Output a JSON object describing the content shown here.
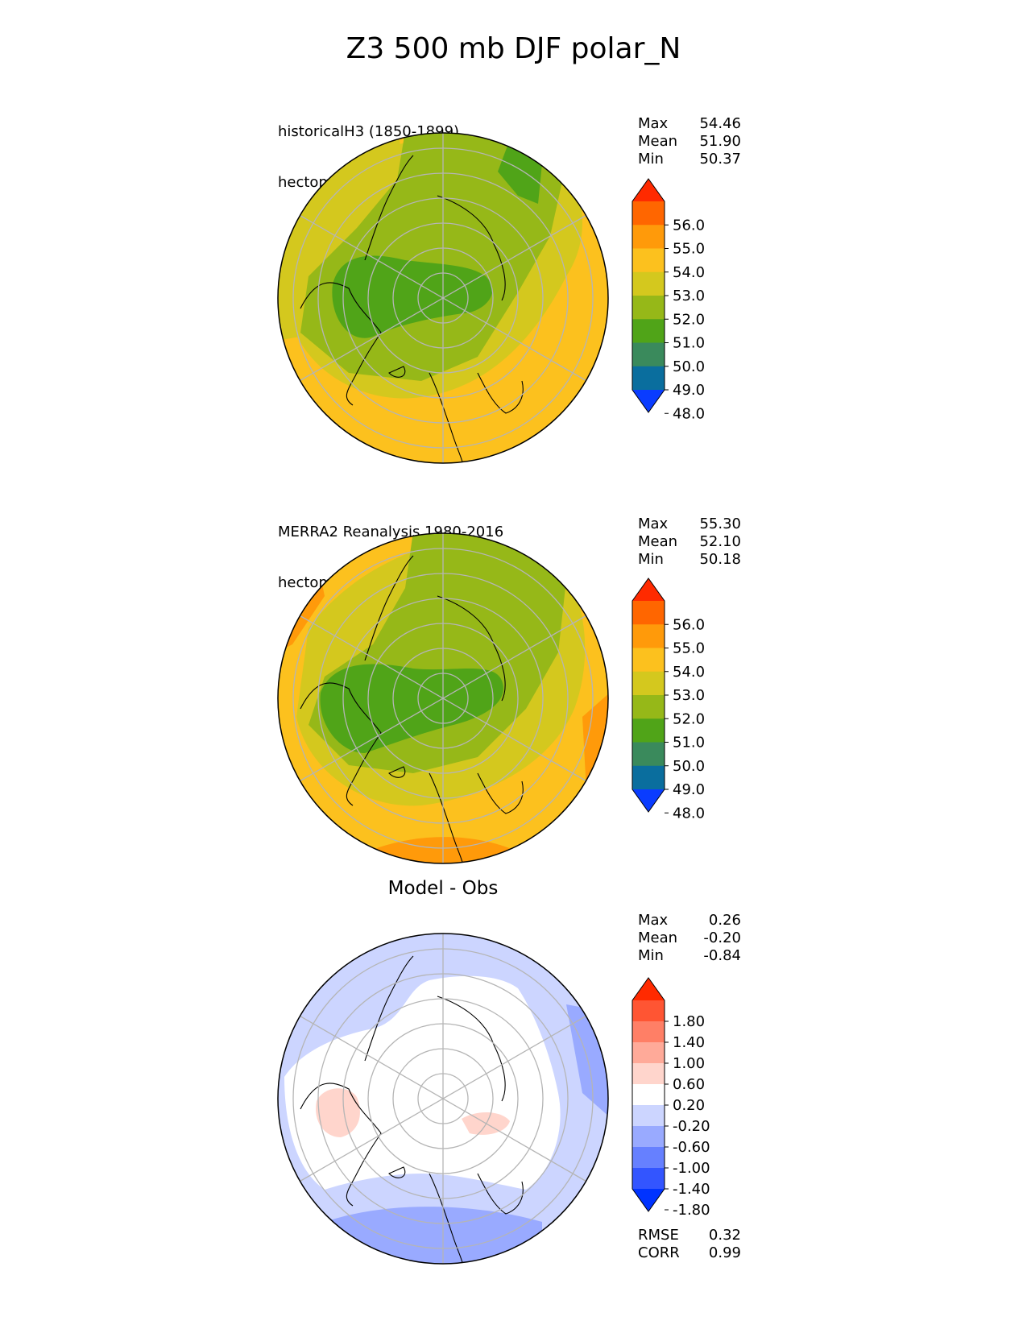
{
  "title": "Z3 500 mb DJF polar_N",
  "panels": [
    {
      "title_lines": [
        "historicalH3 (1850-1899)",
        "hectometer"
      ],
      "stats": [
        {
          "label": "Max",
          "value": "54.46"
        },
        {
          "label": "Mean",
          "value": "51.90"
        },
        {
          "label": "Min",
          "value": "50.37"
        }
      ],
      "colorbar": {
        "labels": [
          "56.0",
          "55.0",
          "54.0",
          "53.0",
          "52.0",
          "51.0",
          "50.0",
          "49.0",
          "48.0"
        ],
        "colors": [
          "#ff2a00",
          "#ff6600",
          "#ff9a0a",
          "#fcc11e",
          "#d4c81e",
          "#96b818",
          "#50a418",
          "#3a8a5c",
          "#0a6e9e",
          "#0a3cff"
        ]
      }
    },
    {
      "title_lines": [
        "MERRA2 Reanalysis 1980-2016",
        "hectometer"
      ],
      "stats": [
        {
          "label": "Max",
          "value": "55.30"
        },
        {
          "label": "Mean",
          "value": "52.10"
        },
        {
          "label": "Min",
          "value": "50.18"
        }
      ],
      "colorbar": {
        "labels": [
          "56.0",
          "55.0",
          "54.0",
          "53.0",
          "52.0",
          "51.0",
          "50.0",
          "49.0",
          "48.0"
        ],
        "colors": [
          "#ff2a00",
          "#ff6600",
          "#ff9a0a",
          "#fcc11e",
          "#d4c81e",
          "#96b818",
          "#50a418",
          "#3a8a5c",
          "#0a6e9e",
          "#0a3cff"
        ]
      }
    },
    {
      "title_center": "Model - Obs",
      "stats": [
        {
          "label": "Max",
          "value": "0.26"
        },
        {
          "label": "Mean",
          "value": "-0.20"
        },
        {
          "label": "Min",
          "value": "-0.84"
        }
      ],
      "colorbar": {
        "labels": [
          "1.80",
          "1.40",
          "1.00",
          "0.60",
          "0.20",
          "-0.20",
          "-0.60",
          "-1.00",
          "-1.40",
          "-1.80"
        ],
        "colors": [
          "#ff2a00",
          "#ff5533",
          "#ff7f66",
          "#ffaa99",
          "#ffd5cc",
          "#ffffff",
          "#ccd5ff",
          "#99aaff",
          "#6680ff",
          "#3355ff",
          "#0033ff"
        ]
      },
      "metrics": [
        {
          "label": "RMSE",
          "value": "0.32"
        },
        {
          "label": "CORR",
          "value": "0.99"
        }
      ]
    }
  ],
  "chart_data": [
    {
      "type": "heatmap",
      "projection": "north polar stereographic",
      "title_lines": [
        "historicalH3 (1850-1899)",
        "hectometer"
      ],
      "stats": {
        "max": 54.46,
        "mean": 51.9,
        "min": 50.37
      },
      "levels": [
        48.0,
        49.0,
        50.0,
        51.0,
        52.0,
        53.0,
        54.0,
        55.0,
        56.0
      ],
      "extend": "both"
    },
    {
      "type": "heatmap",
      "projection": "north polar stereographic",
      "title_lines": [
        "MERRA2 Reanalysis 1980-2016",
        "hectometer"
      ],
      "stats": {
        "max": 55.3,
        "mean": 52.1,
        "min": 50.18
      },
      "levels": [
        48.0,
        49.0,
        50.0,
        51.0,
        52.0,
        53.0,
        54.0,
        55.0,
        56.0
      ],
      "extend": "both"
    },
    {
      "type": "heatmap",
      "projection": "north polar stereographic",
      "title": "Model - Obs",
      "stats": {
        "max": 0.26,
        "mean": -0.2,
        "min": -0.84,
        "rmse": 0.32,
        "corr": 0.99
      },
      "levels": [
        -1.8,
        -1.4,
        -1.0,
        -0.6,
        -0.2,
        0.2,
        0.6,
        1.0,
        1.4,
        1.8
      ],
      "extend": "both"
    }
  ]
}
